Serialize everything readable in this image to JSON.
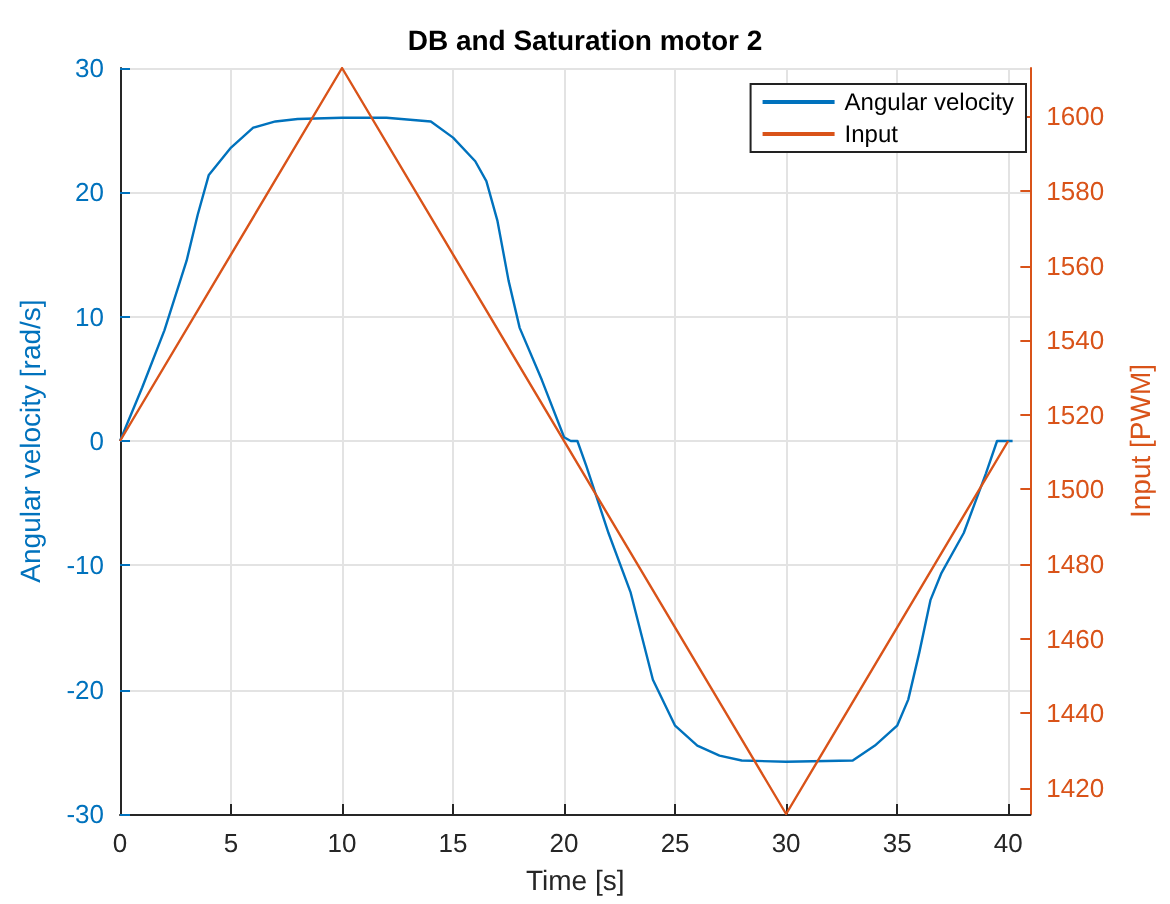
{
  "chart_data": {
    "type": "line",
    "title": "DB and Saturation motor 2",
    "xlabel": "Time [s]",
    "ylabel": "Angular velocity [rad/s]",
    "y2label": "Input [PWM]",
    "xlim": [
      0,
      41
    ],
    "xticks": [
      0,
      5,
      10,
      15,
      20,
      25,
      30,
      35,
      40
    ],
    "ylim": [
      -30,
      30
    ],
    "yticks": [
      -30,
      -20,
      -10,
      0,
      10,
      20,
      30
    ],
    "y2lim": [
      1413,
      1613
    ],
    "y2ticks": [
      1420,
      1440,
      1460,
      1480,
      1500,
      1520,
      1540,
      1560,
      1580,
      1600
    ],
    "grid": true,
    "legend": "top right",
    "marker": "none",
    "line_style": "solid",
    "series": [
      {
        "name": "Angular velocity",
        "color": "#0072bd",
        "x": [
          0,
          1,
          2,
          3,
          3.5,
          4,
          5,
          6,
          7,
          8,
          10,
          12,
          14,
          15,
          16,
          16.5,
          17,
          17.5,
          18,
          19,
          20,
          20.3,
          20.6,
          21,
          22,
          23,
          24,
          25,
          26,
          27,
          28,
          30,
          33,
          34,
          35,
          35.5,
          36,
          36.5,
          37,
          38,
          39,
          39.5,
          40.2
        ],
        "values": [
          0,
          4.3,
          8.9,
          14.5,
          18.2,
          21.4,
          23.6,
          25.2,
          25.7,
          25.9,
          26,
          26,
          25.7,
          24.4,
          22.5,
          20.9,
          17.7,
          12.9,
          9.1,
          4.9,
          0.3,
          0,
          0,
          -2,
          -7.4,
          -12.2,
          -19.2,
          -22.9,
          -24.5,
          -25.3,
          -25.7,
          -25.8,
          -25.7,
          -24.5,
          -22.9,
          -20.8,
          -17,
          -12.8,
          -10.6,
          -7.4,
          -2.6,
          0,
          0
        ]
      },
      {
        "name": "Input",
        "color": "#d95319",
        "axis": "y2",
        "x": [
          0,
          10,
          30,
          40
        ],
        "values": [
          1513,
          1613,
          1413,
          1513
        ]
      }
    ]
  }
}
